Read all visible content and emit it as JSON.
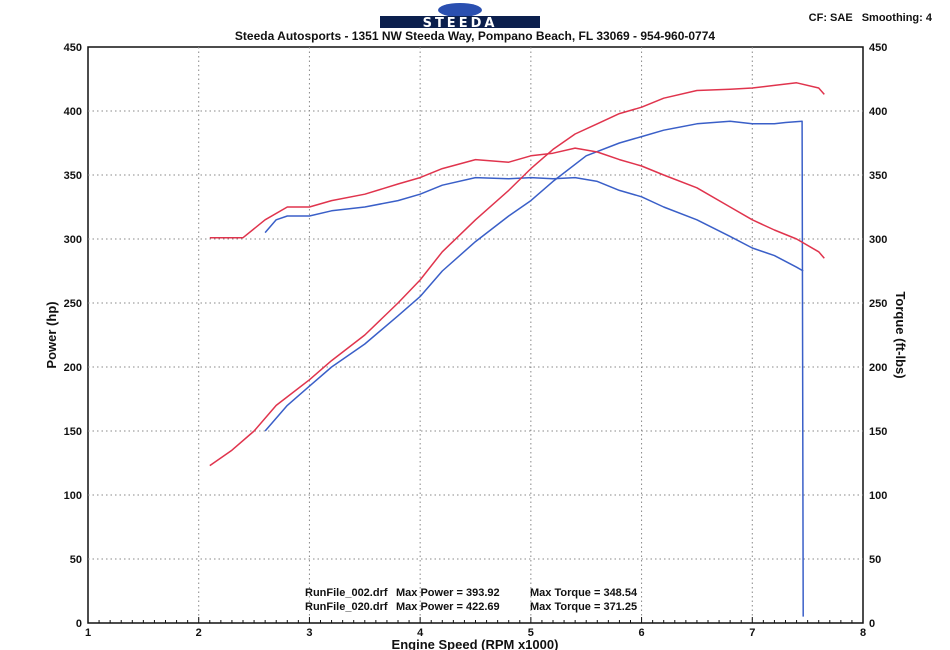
{
  "header": {
    "logo_text": "STEEDA",
    "address": "Steeda Autosports - 1351 NW Steeda Way, Pompano Beach, FL 33069 - 954-960-0774",
    "cf": "CF: SAE",
    "smoothing": "Smoothing: 4"
  },
  "colors": {
    "run_002": "#3a5fc8",
    "run_020": "#e0344d",
    "grid": "#888888"
  },
  "chart_data": {
    "type": "line",
    "xlabel": "Engine Speed (RPM x1000)",
    "ylabel": "Power (hp)",
    "y2label": "Torque (ft-lbs)",
    "xlim": [
      1,
      8
    ],
    "ylim": [
      0,
      450
    ],
    "y2lim": [
      0,
      450
    ],
    "x_ticks": [
      1,
      2,
      3,
      4,
      5,
      6,
      7,
      8
    ],
    "y_ticks": [
      0,
      50,
      100,
      150,
      200,
      250,
      300,
      350,
      400,
      450
    ],
    "grid": true,
    "series": [
      {
        "name": "RunFile_002.drf",
        "quantity": "power",
        "color": "#3a5fc8",
        "x": [
          2.6,
          2.8,
          3.0,
          3.2,
          3.5,
          3.8,
          4.0,
          4.2,
          4.5,
          4.8,
          5.0,
          5.2,
          5.5,
          5.8,
          6.0,
          6.2,
          6.5,
          6.8,
          7.0,
          7.2,
          7.3,
          7.45,
          7.46
        ],
        "y": [
          150,
          170,
          185,
          200,
          218,
          240,
          255,
          275,
          298,
          318,
          330,
          345,
          365,
          375,
          380,
          385,
          390,
          392,
          390,
          390,
          391,
          392,
          5
        ]
      },
      {
        "name": "RunFile_002.drf",
        "quantity": "torque",
        "color": "#3a5fc8",
        "x": [
          2.6,
          2.7,
          2.8,
          3.0,
          3.2,
          3.5,
          3.8,
          4.0,
          4.2,
          4.5,
          4.8,
          5.0,
          5.2,
          5.4,
          5.6,
          5.8,
          6.0,
          6.2,
          6.5,
          6.8,
          7.0,
          7.2,
          7.4,
          7.46
        ],
        "y": [
          305,
          315,
          318,
          318,
          322,
          325,
          330,
          335,
          342,
          348,
          347,
          348,
          347,
          348,
          345,
          338,
          333,
          325,
          315,
          302,
          293,
          287,
          278,
          275
        ]
      },
      {
        "name": "RunFile_020.drf",
        "quantity": "power",
        "color": "#e0344d",
        "x": [
          2.1,
          2.3,
          2.5,
          2.7,
          3.0,
          3.2,
          3.5,
          3.8,
          4.0,
          4.2,
          4.5,
          4.8,
          5.0,
          5.2,
          5.4,
          5.6,
          5.8,
          6.0,
          6.2,
          6.5,
          6.8,
          7.0,
          7.2,
          7.4,
          7.6,
          7.65
        ],
        "y": [
          123,
          135,
          150,
          170,
          190,
          205,
          225,
          250,
          268,
          290,
          315,
          338,
          355,
          370,
          382,
          390,
          398,
          403,
          410,
          416,
          417,
          418,
          420,
          422,
          418,
          413
        ]
      },
      {
        "name": "RunFile_020.drf",
        "quantity": "torque",
        "color": "#e0344d",
        "x": [
          2.1,
          2.4,
          2.6,
          2.8,
          3.0,
          3.2,
          3.5,
          3.8,
          4.0,
          4.2,
          4.5,
          4.8,
          5.0,
          5.2,
          5.4,
          5.6,
          5.8,
          6.0,
          6.2,
          6.5,
          6.8,
          7.0,
          7.2,
          7.4,
          7.6,
          7.65
        ],
        "y": [
          301,
          301,
          315,
          325,
          325,
          330,
          335,
          343,
          348,
          355,
          362,
          360,
          365,
          367,
          371,
          368,
          362,
          357,
          350,
          340,
          325,
          315,
          307,
          300,
          290,
          285
        ]
      }
    ],
    "legend": [
      {
        "file": "RunFile_002.drf",
        "max_power": "Max Power = 393.92",
        "max_torque": "Max Torque = 348.54"
      },
      {
        "file": "RunFile_020.drf",
        "max_power": "Max Power = 422.69",
        "max_torque": "Max Torque = 371.25"
      }
    ]
  }
}
